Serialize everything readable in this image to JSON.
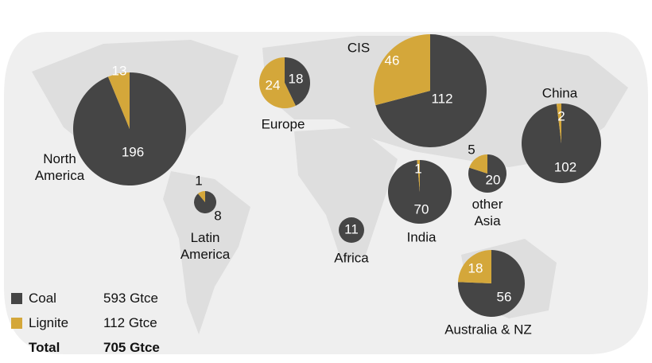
{
  "regions": [
    {
      "name": "North America",
      "coal": 196,
      "lignite": 13
    },
    {
      "name": "Europe",
      "coal": 18,
      "lignite": 24
    },
    {
      "name": "CIS",
      "coal": 112,
      "lignite": 46
    },
    {
      "name": "China",
      "coal": 102,
      "lignite": 2
    },
    {
      "name": "India",
      "coal": 70,
      "lignite": 1
    },
    {
      "name": "other Asia",
      "coal": 20,
      "lignite": 5
    },
    {
      "name": "Australia & NZ",
      "coal": 56,
      "lignite": 18
    },
    {
      "name": "Latin America",
      "coal": 8,
      "lignite": 1
    },
    {
      "name": "Africa",
      "coal": 11
    }
  ],
  "legend": {
    "items": [
      {
        "label": "Coal",
        "color": "#454545",
        "amount": "593 Gtce"
      },
      {
        "label": "Lignite",
        "color": "#d4a73a",
        "amount": "112 Gtce"
      }
    ],
    "total": {
      "label": "Total",
      "amount": "705 Gtce"
    }
  }
}
